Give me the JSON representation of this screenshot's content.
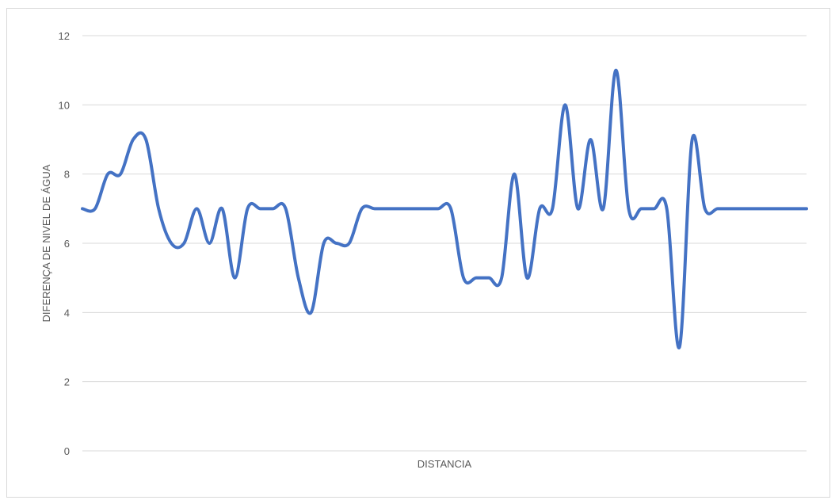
{
  "chart_data": {
    "type": "line",
    "title": "",
    "xlabel": "DISTANCIA",
    "ylabel": "DIFERENÇA DE NIVEL DE ÁGUA",
    "ylim": [
      0,
      12
    ],
    "yticks": [
      "0",
      "2",
      "4",
      "6",
      "8",
      "10",
      "12"
    ],
    "grid": true,
    "legend": "none",
    "series": [
      {
        "color": "#4472C4",
        "values": [
          7,
          7,
          8,
          8,
          9,
          9,
          7,
          6,
          6,
          7,
          6,
          7,
          5,
          7,
          7,
          7,
          7,
          5,
          4,
          6,
          6,
          6,
          7,
          7,
          7,
          7,
          7,
          7,
          7,
          7,
          5,
          5,
          5,
          5,
          8,
          5,
          7,
          7,
          10,
          7,
          9,
          7,
          11,
          7,
          7,
          7,
          7,
          3,
          9,
          7,
          7,
          7,
          7,
          7,
          7,
          7,
          7,
          7
        ]
      }
    ]
  }
}
